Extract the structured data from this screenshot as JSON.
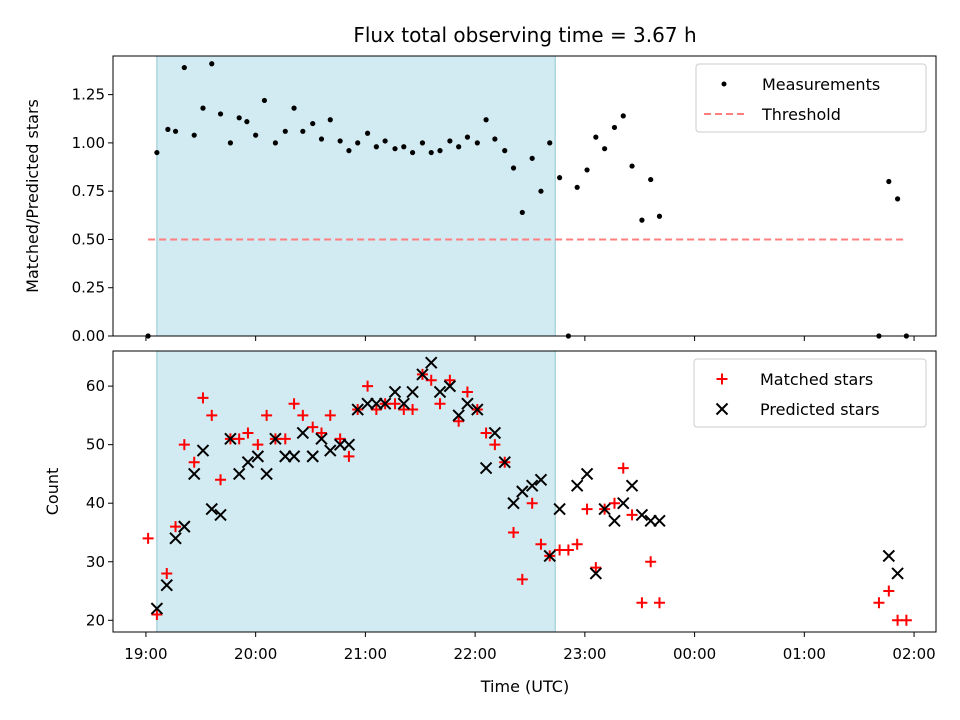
{
  "chart_data": {
    "title": "Flux total observing time = 3.67 h",
    "xlabel": "Time (UTC)",
    "x_unit": "hours after 19:00 UTC",
    "xlim": [
      -0.3,
      7.2
    ],
    "xticks": [
      {
        "x": 0,
        "label": "19:00"
      },
      {
        "x": 1,
        "label": "20:00"
      },
      {
        "x": 2,
        "label": "21:00"
      },
      {
        "x": 3,
        "label": "22:00"
      },
      {
        "x": 4,
        "label": "23:00"
      },
      {
        "x": 5,
        "label": "00:00"
      },
      {
        "x": 6,
        "label": "01:00"
      },
      {
        "x": 7,
        "label": "02:00"
      }
    ],
    "shaded_region": {
      "x_start": 0.1,
      "x_end": 3.73,
      "color": "#add8e6"
    },
    "panels": [
      {
        "type": "scatter",
        "ylabel": "Matched/Predicted stars",
        "ylim": [
          0,
          1.45
        ],
        "yticks": [
          0,
          0.25,
          0.5,
          0.75,
          1.0,
          1.25
        ],
        "ytick_labels": [
          "0.00",
          "0.25",
          "0.50",
          "0.75",
          "1.00",
          "1.25"
        ],
        "legend_position": "top-right",
        "series": [
          {
            "name": "Measurements",
            "marker": "dot",
            "color": "#000000",
            "points": [
              [
                0.02,
                0.0
              ],
              [
                0.1,
                0.95
              ],
              [
                0.2,
                1.07
              ],
              [
                0.27,
                1.06
              ],
              [
                0.35,
                1.39
              ],
              [
                0.44,
                1.04
              ],
              [
                0.52,
                1.18
              ],
              [
                0.6,
                1.41
              ],
              [
                0.68,
                1.15
              ],
              [
                0.77,
                1.0
              ],
              [
                0.85,
                1.13
              ],
              [
                0.92,
                1.11
              ],
              [
                1.0,
                1.04
              ],
              [
                1.08,
                1.22
              ],
              [
                1.18,
                1.0
              ],
              [
                1.27,
                1.06
              ],
              [
                1.35,
                1.18
              ],
              [
                1.43,
                1.06
              ],
              [
                1.52,
                1.1
              ],
              [
                1.6,
                1.02
              ],
              [
                1.68,
                1.12
              ],
              [
                1.77,
                1.01
              ],
              [
                1.85,
                0.96
              ],
              [
                1.93,
                1.0
              ],
              [
                2.02,
                1.05
              ],
              [
                2.1,
                0.98
              ],
              [
                2.18,
                1.01
              ],
              [
                2.27,
                0.97
              ],
              [
                2.35,
                0.98
              ],
              [
                2.43,
                0.95
              ],
              [
                2.52,
                1.0
              ],
              [
                2.6,
                0.95
              ],
              [
                2.68,
                0.96
              ],
              [
                2.77,
                1.01
              ],
              [
                2.85,
                0.98
              ],
              [
                2.93,
                1.03
              ],
              [
                3.02,
                1.0
              ],
              [
                3.1,
                1.12
              ],
              [
                3.18,
                1.02
              ],
              [
                3.27,
                0.96
              ],
              [
                3.35,
                0.87
              ],
              [
                3.43,
                0.64
              ],
              [
                3.52,
                0.92
              ],
              [
                3.6,
                0.75
              ],
              [
                3.68,
                1.0
              ],
              [
                3.77,
                0.82
              ],
              [
                3.85,
                0.0
              ],
              [
                3.93,
                0.77
              ],
              [
                4.02,
                0.86
              ],
              [
                4.1,
                1.03
              ],
              [
                4.18,
                0.97
              ],
              [
                4.27,
                1.08
              ],
              [
                4.35,
                1.14
              ],
              [
                4.43,
                0.88
              ],
              [
                4.52,
                0.6
              ],
              [
                4.6,
                0.81
              ],
              [
                4.68,
                0.62
              ],
              [
                6.68,
                0.0
              ],
              [
                6.77,
                0.8
              ],
              [
                6.85,
                0.71
              ],
              [
                6.93,
                0.0
              ]
            ]
          },
          {
            "name": "Threshold",
            "marker": "dashed-line",
            "color": "#ff7f7f",
            "line": [
              [
                0.02,
                0.5
              ],
              [
                6.93,
                0.5
              ]
            ]
          }
        ]
      },
      {
        "type": "scatter",
        "ylabel": "Count",
        "ylim": [
          18,
          66
        ],
        "yticks": [
          20,
          30,
          40,
          50,
          60
        ],
        "ytick_labels": [
          "20",
          "30",
          "40",
          "50",
          "60"
        ],
        "legend_position": "top-right",
        "series": [
          {
            "name": "Matched stars",
            "marker": "plus",
            "color": "#ff0000",
            "points": [
              [
                0.02,
                34
              ],
              [
                0.1,
                21
              ],
              [
                0.19,
                28
              ],
              [
                0.27,
                36
              ],
              [
                0.35,
                50
              ],
              [
                0.44,
                47
              ],
              [
                0.52,
                58
              ],
              [
                0.6,
                55
              ],
              [
                0.68,
                44
              ],
              [
                0.77,
                51
              ],
              [
                0.85,
                51
              ],
              [
                0.93,
                52
              ],
              [
                1.02,
                50
              ],
              [
                1.1,
                55
              ],
              [
                1.18,
                51
              ],
              [
                1.27,
                51
              ],
              [
                1.35,
                57
              ],
              [
                1.43,
                55
              ],
              [
                1.52,
                53
              ],
              [
                1.6,
                52
              ],
              [
                1.68,
                55
              ],
              [
                1.77,
                51
              ],
              [
                1.85,
                48
              ],
              [
                1.93,
                56
              ],
              [
                2.02,
                60
              ],
              [
                2.1,
                56
              ],
              [
                2.18,
                57
              ],
              [
                2.27,
                57
              ],
              [
                2.35,
                56
              ],
              [
                2.43,
                56
              ],
              [
                2.52,
                62
              ],
              [
                2.6,
                61
              ],
              [
                2.68,
                57
              ],
              [
                2.77,
                61
              ],
              [
                2.85,
                54
              ],
              [
                2.93,
                59
              ],
              [
                3.02,
                56
              ],
              [
                3.1,
                52
              ],
              [
                3.18,
                50
              ],
              [
                3.27,
                47
              ],
              [
                3.35,
                35
              ],
              [
                3.43,
                27
              ],
              [
                3.52,
                40
              ],
              [
                3.6,
                33
              ],
              [
                3.68,
                31
              ],
              [
                3.77,
                32
              ],
              [
                3.85,
                32
              ],
              [
                3.93,
                33
              ],
              [
                4.02,
                39
              ],
              [
                4.1,
                29
              ],
              [
                4.18,
                39
              ],
              [
                4.27,
                40
              ],
              [
                4.35,
                46
              ],
              [
                4.43,
                38
              ],
              [
                4.52,
                23
              ],
              [
                4.6,
                30
              ],
              [
                4.68,
                23
              ],
              [
                6.68,
                23
              ],
              [
                6.77,
                25
              ],
              [
                6.85,
                20
              ],
              [
                6.93,
                20
              ]
            ]
          },
          {
            "name": "Predicted stars",
            "marker": "x",
            "color": "#000000",
            "points": [
              [
                0.1,
                22
              ],
              [
                0.19,
                26
              ],
              [
                0.27,
                34
              ],
              [
                0.35,
                36
              ],
              [
                0.44,
                45
              ],
              [
                0.52,
                49
              ],
              [
                0.6,
                39
              ],
              [
                0.68,
                38
              ],
              [
                0.77,
                51
              ],
              [
                0.85,
                45
              ],
              [
                0.93,
                47
              ],
              [
                1.02,
                48
              ],
              [
                1.1,
                45
              ],
              [
                1.18,
                51
              ],
              [
                1.27,
                48
              ],
              [
                1.35,
                48
              ],
              [
                1.43,
                52
              ],
              [
                1.52,
                48
              ],
              [
                1.6,
                51
              ],
              [
                1.68,
                49
              ],
              [
                1.77,
                50
              ],
              [
                1.85,
                50
              ],
              [
                1.93,
                56
              ],
              [
                2.02,
                57
              ],
              [
                2.1,
                57
              ],
              [
                2.18,
                57
              ],
              [
                2.27,
                59
              ],
              [
                2.35,
                57
              ],
              [
                2.43,
                59
              ],
              [
                2.52,
                62
              ],
              [
                2.6,
                64
              ],
              [
                2.68,
                59
              ],
              [
                2.77,
                60
              ],
              [
                2.85,
                55
              ],
              [
                2.93,
                57
              ],
              [
                3.02,
                56
              ],
              [
                3.1,
                46
              ],
              [
                3.18,
                52
              ],
              [
                3.27,
                47
              ],
              [
                3.35,
                40
              ],
              [
                3.43,
                42
              ],
              [
                3.52,
                43
              ],
              [
                3.6,
                44
              ],
              [
                3.68,
                31
              ],
              [
                3.77,
                39
              ],
              [
                3.93,
                43
              ],
              [
                4.02,
                45
              ],
              [
                4.1,
                28
              ],
              [
                4.18,
                39
              ],
              [
                4.27,
                37
              ],
              [
                4.35,
                40
              ],
              [
                4.43,
                43
              ],
              [
                4.52,
                38
              ],
              [
                4.6,
                37
              ],
              [
                4.68,
                37
              ],
              [
                6.77,
                31
              ],
              [
                6.85,
                28
              ]
            ]
          }
        ]
      }
    ]
  }
}
